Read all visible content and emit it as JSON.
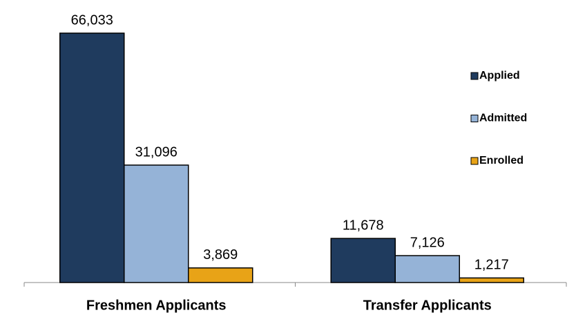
{
  "chart_data": {
    "type": "bar",
    "categories": [
      "Freshmen Applicants",
      "Transfer Applicants"
    ],
    "series": [
      {
        "name": "Applied",
        "color": "#1f3b5e",
        "values": [
          66033,
          11678
        ],
        "value_labels": [
          "66,033",
          "11,678"
        ]
      },
      {
        "name": "Admitted",
        "color": "#95b3d7",
        "values": [
          31096,
          7126
        ],
        "value_labels": [
          "31,096",
          "7,126"
        ]
      },
      {
        "name": "Enrolled",
        "color": "#e8a317",
        "values": [
          3869,
          1217
        ],
        "value_labels": [
          "3,869",
          "1,217"
        ]
      }
    ],
    "ylim": [
      0,
      70000
    ],
    "legend": "right"
  }
}
